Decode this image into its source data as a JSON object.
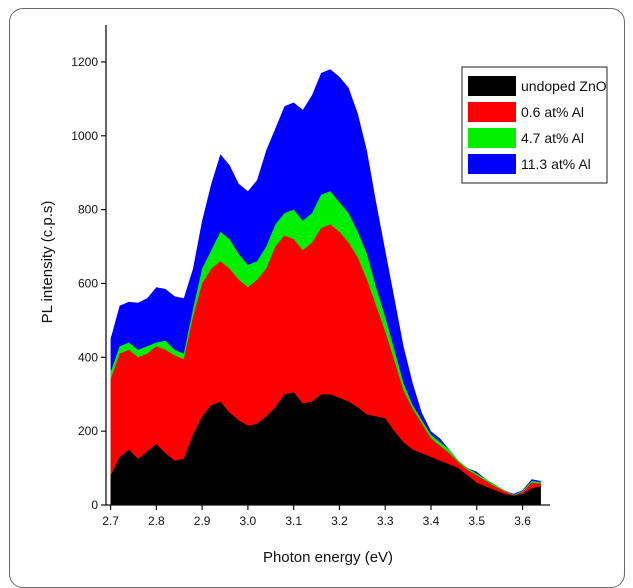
{
  "chart_data": {
    "type": "area",
    "xlabel": "Photon energy (eV)",
    "ylabel": "PL intensity (c.p.s)",
    "xlim": [
      2.69,
      3.66
    ],
    "ylim": [
      0,
      1300
    ],
    "x_ticks": [
      "2.7",
      "2.8",
      "2.9",
      "3.0",
      "3.1",
      "3.2",
      "3.3",
      "3.4",
      "3.5",
      "3.6"
    ],
    "y_ticks": [
      "0",
      "200",
      "400",
      "600",
      "800",
      "1000",
      "1200"
    ],
    "legend_position": "top-right",
    "series": [
      {
        "name": "11.3 at% Al",
        "color": "#0000ff",
        "x": [
          2.7,
          2.72,
          2.74,
          2.76,
          2.78,
          2.8,
          2.82,
          2.84,
          2.86,
          2.88,
          2.9,
          2.92,
          2.94,
          2.96,
          2.98,
          3.0,
          3.02,
          3.04,
          3.06,
          3.08,
          3.1,
          3.12,
          3.14,
          3.16,
          3.18,
          3.2,
          3.22,
          3.24,
          3.26,
          3.28,
          3.3,
          3.32,
          3.34,
          3.36,
          3.38,
          3.4,
          3.42,
          3.44,
          3.46,
          3.48,
          3.5,
          3.52,
          3.54,
          3.56,
          3.58,
          3.6,
          3.62,
          3.64
        ],
        "values": [
          450,
          540,
          550,
          548,
          560,
          590,
          585,
          565,
          560,
          640,
          770,
          870,
          950,
          920,
          870,
          850,
          880,
          960,
          1020,
          1080,
          1090,
          1070,
          1110,
          1170,
          1180,
          1160,
          1130,
          1060,
          960,
          820,
          690,
          560,
          430,
          330,
          250,
          200,
          180,
          150,
          120,
          100,
          90,
          70,
          55,
          40,
          30,
          40,
          70,
          65
        ]
      },
      {
        "name": "4.7 at% Al",
        "color": "#00ee00",
        "x": [
          2.7,
          2.72,
          2.74,
          2.76,
          2.78,
          2.8,
          2.82,
          2.84,
          2.86,
          2.88,
          2.9,
          2.92,
          2.94,
          2.96,
          2.98,
          3.0,
          3.02,
          3.04,
          3.06,
          3.08,
          3.1,
          3.12,
          3.14,
          3.16,
          3.18,
          3.2,
          3.22,
          3.24,
          3.26,
          3.28,
          3.3,
          3.32,
          3.34,
          3.36,
          3.38,
          3.4,
          3.42,
          3.44,
          3.46,
          3.48,
          3.5,
          3.52,
          3.54,
          3.56,
          3.58,
          3.6,
          3.62,
          3.64
        ],
        "values": [
          360,
          430,
          440,
          420,
          430,
          440,
          445,
          420,
          410,
          530,
          640,
          690,
          740,
          720,
          680,
          650,
          660,
          700,
          760,
          790,
          800,
          770,
          790,
          840,
          850,
          820,
          790,
          740,
          680,
          590,
          510,
          420,
          330,
          270,
          230,
          190,
          170,
          150,
          120,
          100,
          85,
          70,
          55,
          40,
          28,
          38,
          65,
          62
        ]
      },
      {
        "name": "0.6 at% Al",
        "color": "#ff0000",
        "x": [
          2.7,
          2.72,
          2.74,
          2.76,
          2.78,
          2.8,
          2.82,
          2.84,
          2.86,
          2.88,
          2.9,
          2.92,
          2.94,
          2.96,
          2.98,
          3.0,
          3.02,
          3.04,
          3.06,
          3.08,
          3.1,
          3.12,
          3.14,
          3.16,
          3.18,
          3.2,
          3.22,
          3.24,
          3.26,
          3.28,
          3.3,
          3.32,
          3.34,
          3.36,
          3.38,
          3.4,
          3.42,
          3.44,
          3.46,
          3.48,
          3.5,
          3.52,
          3.54,
          3.56,
          3.58,
          3.6,
          3.62,
          3.64
        ],
        "values": [
          340,
          410,
          420,
          400,
          410,
          430,
          420,
          405,
          395,
          510,
          600,
          640,
          660,
          640,
          610,
          590,
          610,
          640,
          700,
          730,
          720,
          690,
          710,
          750,
          760,
          740,
          710,
          670,
          610,
          540,
          470,
          390,
          310,
          260,
          220,
          180,
          160,
          140,
          115,
          95,
          80,
          65,
          50,
          38,
          26,
          35,
          60,
          58
        ]
      },
      {
        "name": "undoped ZnO",
        "color": "#000000",
        "x": [
          2.7,
          2.72,
          2.74,
          2.76,
          2.78,
          2.8,
          2.82,
          2.84,
          2.86,
          2.88,
          2.9,
          2.92,
          2.94,
          2.96,
          2.98,
          3.0,
          3.02,
          3.04,
          3.06,
          3.08,
          3.1,
          3.12,
          3.14,
          3.16,
          3.18,
          3.2,
          3.22,
          3.24,
          3.26,
          3.28,
          3.3,
          3.32,
          3.34,
          3.36,
          3.38,
          3.4,
          3.42,
          3.44,
          3.46,
          3.48,
          3.5,
          3.52,
          3.54,
          3.56,
          3.58,
          3.6,
          3.62,
          3.64
        ],
        "values": [
          80,
          130,
          150,
          125,
          145,
          165,
          140,
          120,
          125,
          190,
          240,
          270,
          280,
          250,
          230,
          215,
          220,
          240,
          265,
          300,
          305,
          275,
          280,
          300,
          300,
          290,
          280,
          265,
          245,
          240,
          235,
          200,
          170,
          150,
          140,
          130,
          120,
          110,
          100,
          80,
          60,
          50,
          40,
          30,
          25,
          30,
          45,
          50
        ]
      }
    ]
  }
}
